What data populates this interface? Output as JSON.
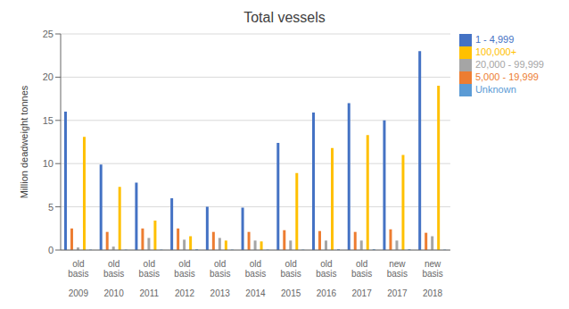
{
  "chart_data": {
    "type": "bar",
    "title": "Total vessels",
    "ylabel": "Million deadweight tonnes",
    "categories": [
      "old\nbasis\n\n2009",
      "old\nbasis\n\n2010",
      "old\nbasis\n\n2011",
      "old\nbasis\n\n2012",
      "old\nbasis\n\n2013",
      "old\nbasis\n\n2014",
      "old\nbasis\n\n2015",
      "old\nbasis\n\n2016",
      "old\nbasis\n\n2017",
      "new\nbasis\n\n2017",
      "new\nbasis\n\n2018"
    ],
    "series": [
      {
        "name": "1 - 4,999",
        "color": "#4472C4",
        "values": [
          16.0,
          9.9,
          7.8,
          6.0,
          5.0,
          4.9,
          12.4,
          15.9,
          17.0,
          15.0,
          23.0
        ]
      },
      {
        "name": "5,000 - 19,999",
        "color": "#ED7D31",
        "values": [
          2.5,
          2.1,
          2.5,
          2.5,
          2.1,
          2.1,
          2.3,
          2.2,
          2.1,
          2.4,
          2.0
        ]
      },
      {
        "name": "20,000 - 99,999",
        "color": "#A5A5A5",
        "values": [
          0.3,
          0.4,
          1.4,
          1.2,
          1.4,
          1.1,
          1.1,
          1.1,
          1.1,
          1.1,
          1.6
        ]
      },
      {
        "name": "100,000+",
        "color": "#FFC000",
        "values": [
          13.1,
          7.3,
          3.4,
          1.6,
          1.1,
          1.0,
          8.9,
          11.8,
          13.3,
          11.0,
          19.0
        ]
      },
      {
        "name": "Unknown",
        "color": "#5B9BD5",
        "values": [
          0.05,
          0.05,
          0.05,
          0.1,
          0.05,
          0.05,
          0.05,
          0.1,
          0.1,
          0.1,
          0.05
        ]
      }
    ],
    "ylim": [
      0,
      25
    ],
    "yticks": [
      0,
      5,
      10,
      15,
      20,
      25
    ],
    "grid": true,
    "legend": "right"
  }
}
